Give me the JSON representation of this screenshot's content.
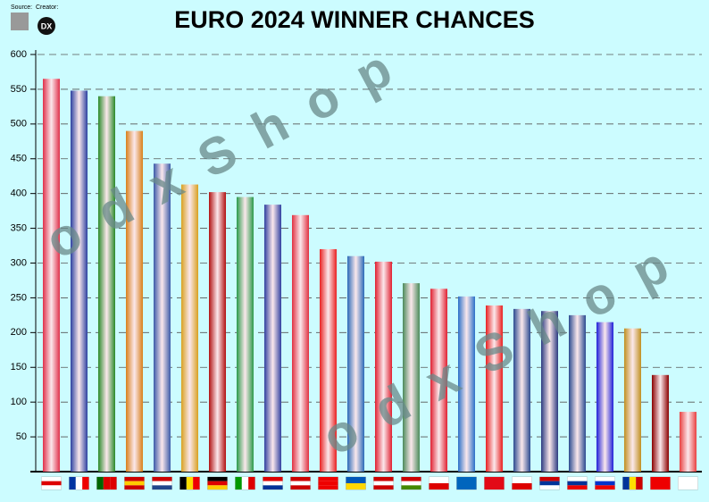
{
  "chart_data": {
    "type": "bar",
    "title": "EURO 2024 WINNER CHANCES",
    "source_label": "Source:",
    "creator_label": "Creator:",
    "creator_logo": "DX",
    "watermark": [
      "odxShop",
      "odxShop"
    ],
    "categories": [
      null,
      null,
      null,
      null,
      null,
      null,
      null,
      null,
      null,
      null,
      null,
      null,
      null,
      null,
      null,
      null,
      null,
      null,
      null,
      null,
      null,
      null,
      null,
      null
    ],
    "values": [
      565,
      548,
      540,
      490,
      443,
      413,
      402,
      395,
      384,
      369,
      320,
      310,
      302,
      271,
      263,
      252,
      239,
      234,
      231,
      225,
      215,
      206,
      139,
      86
    ],
    "colors": [
      "#e0304a",
      "#2a3fa0",
      "#2a8a2a",
      "#d8801a",
      "#3a5aa8",
      "#d8a020",
      "#b01010",
      "#2a9a4a",
      "#3040a0",
      "#e03040",
      "#e82020",
      "#2a6ab8",
      "#e02030",
      "#4a8a5a",
      "#e02030",
      "#2a70c8",
      "#e82020",
      "#2a4a90",
      "#2a3a80",
      "#2a4a90",
      "#2020d8",
      "#c09020",
      "#8a0000",
      "#e84040"
    ],
    "ylim": [
      0,
      600
    ],
    "yticks": [
      50,
      100,
      150,
      200,
      250,
      300,
      350,
      400,
      450,
      500,
      550,
      600
    ],
    "grid": true
  }
}
